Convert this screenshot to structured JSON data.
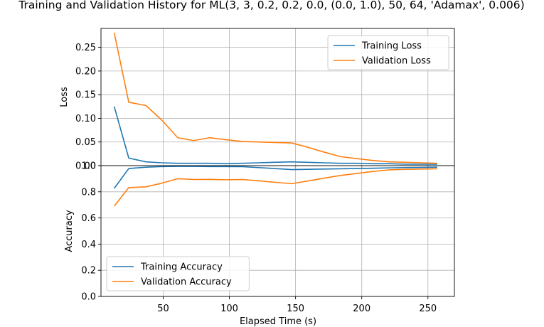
{
  "chart_data": {
    "title": "Training and Validation History for ML(3, 3, 0.2, 0.2, 0.0, (0.0, 1.0), 50, 64, 'Adamax', 0.006)",
    "xlabel": "Elapsed Time (s)",
    "xlim": [
      3,
      270
    ],
    "xticks": [
      50,
      100,
      150,
      200,
      250
    ],
    "grid": true,
    "panels": [
      {
        "id": "loss",
        "type": "line",
        "ylabel": "Loss",
        "ylim": [
          0,
          0.29
        ],
        "yticks": [
          0.0,
          0.05,
          0.1,
          0.15,
          0.2,
          0.25
        ],
        "ytick_labels": [
          "0.00",
          "0.05",
          "0.10",
          "0.15",
          "0.20",
          "0.25"
        ],
        "legend_position": "top-right",
        "series": [
          {
            "name": "Training Loss",
            "color": "#1f77b4",
            "x": [
              13,
              24,
              37,
              49,
              61,
              73,
              85,
              97,
              110,
              122,
              134,
              147,
              159,
              171,
              184,
              196,
              208,
              221,
              233,
              245,
              257
            ],
            "y": [
              0.125,
              0.016,
              0.008,
              0.006,
              0.005,
              0.005,
              0.005,
              0.004,
              0.005,
              0.006,
              0.007,
              0.008,
              0.007,
              0.006,
              0.005,
              0.005,
              0.004,
              0.004,
              0.003,
              0.003,
              0.003
            ]
          },
          {
            "name": "Validation Loss",
            "color": "#ff7f0e",
            "x": [
              13,
              24,
              37,
              49,
              61,
              73,
              85,
              97,
              110,
              122,
              134,
              147,
              159,
              171,
              184,
              196,
              208,
              221,
              233,
              245,
              257
            ],
            "y": [
              0.281,
              0.134,
              0.127,
              0.096,
              0.059,
              0.053,
              0.059,
              0.055,
              0.051,
              0.05,
              0.049,
              0.048,
              0.039,
              0.029,
              0.019,
              0.015,
              0.011,
              0.008,
              0.007,
              0.006,
              0.005
            ]
          }
        ]
      },
      {
        "id": "accuracy",
        "type": "line",
        "ylabel": "Accuracy",
        "ylim": [
          0,
          1.0
        ],
        "yticks": [
          0.0,
          0.2,
          0.4,
          0.6,
          0.8,
          1.0
        ],
        "ytick_labels": [
          "0.0",
          "0.2",
          "0.4",
          "0.6",
          "0.8",
          "1.0"
        ],
        "legend_position": "bottom-left",
        "series": [
          {
            "name": "Training Accuracy",
            "color": "#1f77b4",
            "x": [
              13,
              24,
              37,
              49,
              61,
              73,
              85,
              97,
              110,
              122,
              134,
              147,
              159,
              171,
              184,
              196,
              208,
              221,
              233,
              245,
              257
            ],
            "y": [
              0.826,
              0.978,
              0.988,
              0.993,
              0.994,
              0.994,
              0.993,
              0.993,
              0.992,
              0.985,
              0.978,
              0.97,
              0.972,
              0.974,
              0.976,
              0.978,
              0.98,
              0.983,
              0.985,
              0.986,
              0.988
            ]
          },
          {
            "name": "Validation Accuracy",
            "color": "#ff7f0e",
            "x": [
              13,
              24,
              37,
              49,
              61,
              73,
              85,
              97,
              110,
              122,
              134,
              147,
              159,
              171,
              184,
              196,
              208,
              221,
              233,
              245,
              257
            ],
            "y": [
              0.69,
              0.832,
              0.838,
              0.866,
              0.9,
              0.894,
              0.895,
              0.892,
              0.894,
              0.884,
              0.873,
              0.862,
              0.882,
              0.903,
              0.925,
              0.94,
              0.955,
              0.968,
              0.972,
              0.974,
              0.976
            ]
          }
        ]
      }
    ]
  }
}
